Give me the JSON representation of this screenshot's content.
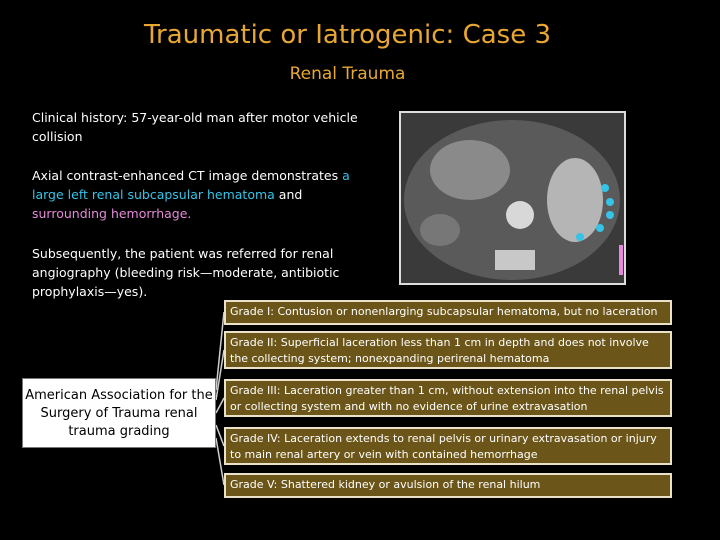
{
  "header": {
    "title": "Traumatic or Iatrogenic: Case 3",
    "subtitle": "Renal Trauma"
  },
  "body": {
    "history": "Clinical history: 57-year-old man after motor vehicle collision",
    "ct": [
      "Axial contrast-enhanced CT image demonstrates ",
      "a large left renal subcapsular hematoma",
      " and ",
      "surrounding hemorrhage."
    ],
    "subsequent": "Subsequently, the patient was referred for renal angiography (bleeding risk—moderate, antibiotic prophylaxis—yes)."
  },
  "grading": {
    "label": "American Association for the Surgery of Trauma renal trauma grading",
    "grades": [
      "Grade I: Contusion or nonenlarging subcapsular hematoma, but no laceration",
      "Grade II: Superficial laceration less than 1 cm in depth and does not involve the collecting system; nonexpanding perirenal hematoma",
      "Grade III: Laceration greater than 1 cm, without extension into the renal pelvis or collecting system and with no evidence of urine extravasation",
      "Grade IV: Laceration extends to renal pelvis or urinary extravasation or injury to main renal artery or vein with contained hemorrhage",
      "Grade V: Shattered kidney or avulsion of the renal hilum"
    ]
  }
}
